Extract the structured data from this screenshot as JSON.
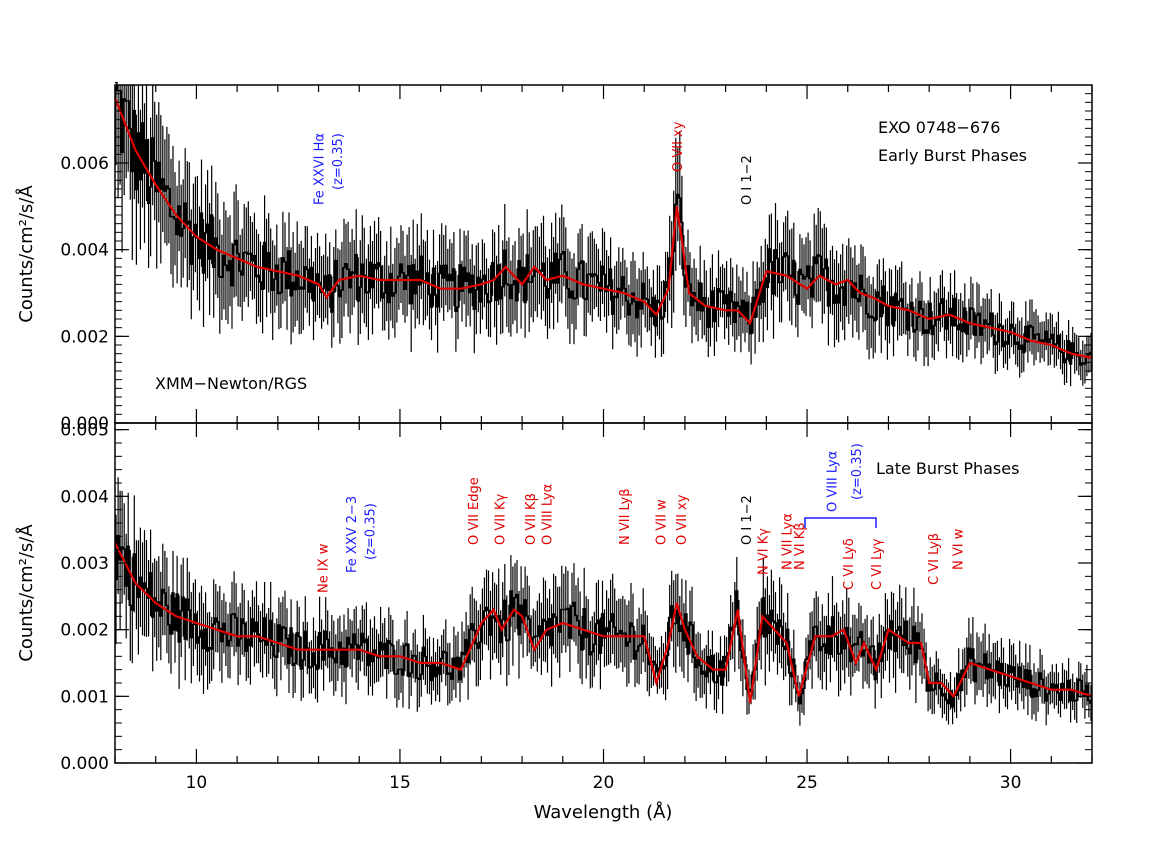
{
  "chart_data": [
    {
      "type": "line",
      "panel": "top",
      "texts": {
        "source": "EXO 0748−676",
        "phase": "Early Burst Phases",
        "instrument": "XMM−Newton/RGS",
        "ylabel": "Counts/cm²/s/Å"
      },
      "xlim": [
        8,
        32
      ],
      "ylim": [
        0,
        0.0078
      ],
      "yticks": [
        {
          "v": 0.0,
          "label": "0.000"
        },
        {
          "v": 0.002,
          "label": "0.002"
        },
        {
          "v": 0.004,
          "label": "0.004"
        },
        {
          "v": 0.006,
          "label": "0.006"
        }
      ],
      "series": [
        {
          "kind": "model",
          "color": "#e00000",
          "x": [
            8.0,
            8.5,
            9.0,
            9.5,
            10.0,
            10.5,
            11.0,
            11.5,
            12.0,
            12.5,
            13.0,
            13.2,
            13.5,
            14.0,
            14.5,
            15.0,
            15.5,
            16.0,
            16.5,
            17.0,
            17.3,
            17.6,
            18.0,
            18.3,
            18.6,
            19.0,
            19.5,
            20.0,
            20.5,
            21.0,
            21.3,
            21.6,
            21.8,
            21.9,
            22.1,
            22.5,
            23.0,
            23.3,
            23.6,
            24.0,
            24.5,
            25.0,
            25.3,
            25.7,
            26.0,
            26.3,
            26.6,
            27.0,
            27.5,
            28.0,
            28.5,
            29.0,
            29.5,
            30.0,
            30.5,
            31.0,
            31.5,
            32.0
          ],
          "y": [
            0.0075,
            0.0063,
            0.0055,
            0.0048,
            0.0043,
            0.004,
            0.0038,
            0.0036,
            0.0035,
            0.0034,
            0.0032,
            0.0029,
            0.0033,
            0.0034,
            0.0033,
            0.0033,
            0.0033,
            0.0031,
            0.0031,
            0.0032,
            0.0033,
            0.0036,
            0.0032,
            0.0036,
            0.0033,
            0.0034,
            0.0032,
            0.0031,
            0.003,
            0.0028,
            0.0025,
            0.0031,
            0.005,
            0.0044,
            0.003,
            0.0027,
            0.0026,
            0.0026,
            0.0023,
            0.0035,
            0.0034,
            0.0031,
            0.0034,
            0.0032,
            0.0033,
            0.003,
            0.0029,
            0.0027,
            0.0026,
            0.0024,
            0.0025,
            0.0023,
            0.0022,
            0.0021,
            0.0019,
            0.0018,
            0.0016,
            0.0015
          ]
        }
      ],
      "annotations": [
        {
          "text": "Fe XXVI Hα",
          "x": 13.0,
          "color": "#1a1aff",
          "rotate": -90
        },
        {
          "text": "(z=0.35)",
          "x": 13.45,
          "color": "#1a1aff",
          "rotate": -90
        },
        {
          "text": "O VII xy",
          "x": 21.8,
          "color": "#e00000",
          "rotate": -90
        },
        {
          "text": "O I 1−2",
          "x": 23.5,
          "color": "#000000",
          "rotate": -90
        }
      ]
    },
    {
      "type": "line",
      "panel": "bottom",
      "texts": {
        "phase": "Late Burst Phases",
        "ylabel": "Counts/cm²/s/Å",
        "xlabel": "Wavelength (Å)"
      },
      "xlim": [
        8,
        32
      ],
      "ylim": [
        0,
        0.0051
      ],
      "xticks": [
        10,
        15,
        20,
        25,
        30
      ],
      "yticks": [
        {
          "v": 0.0,
          "label": "0.000"
        },
        {
          "v": 0.001,
          "label": "0.001"
        },
        {
          "v": 0.002,
          "label": "0.002"
        },
        {
          "v": 0.003,
          "label": "0.003"
        },
        {
          "v": 0.004,
          "label": "0.004"
        },
        {
          "v": 0.005,
          "label": "0.005"
        }
      ],
      "series": [
        {
          "kind": "model",
          "color": "#e00000",
          "x": [
            8.0,
            8.5,
            9.0,
            9.5,
            10.0,
            10.5,
            11.0,
            11.5,
            12.0,
            12.5,
            13.0,
            13.5,
            14.0,
            14.5,
            15.0,
            15.5,
            16.0,
            16.5,
            17.0,
            17.3,
            17.5,
            17.8,
            18.0,
            18.3,
            18.6,
            19.0,
            19.5,
            20.0,
            20.5,
            21.0,
            21.3,
            21.6,
            21.8,
            22.0,
            22.3,
            22.7,
            23.0,
            23.3,
            23.6,
            23.9,
            24.2,
            24.5,
            24.8,
            25.2,
            25.6,
            25.9,
            26.2,
            26.4,
            26.7,
            27.0,
            27.5,
            27.8,
            28.0,
            28.3,
            28.6,
            29.0,
            29.5,
            30.0,
            30.5,
            31.0,
            31.5,
            32.0
          ],
          "y": [
            0.0033,
            0.0027,
            0.0024,
            0.0022,
            0.0021,
            0.002,
            0.0019,
            0.0019,
            0.0018,
            0.0017,
            0.0017,
            0.0017,
            0.0017,
            0.0016,
            0.0016,
            0.0015,
            0.0015,
            0.0014,
            0.0021,
            0.0023,
            0.002,
            0.0023,
            0.0022,
            0.0017,
            0.002,
            0.0021,
            0.002,
            0.0019,
            0.0019,
            0.0019,
            0.0012,
            0.0018,
            0.0024,
            0.002,
            0.0016,
            0.0014,
            0.0014,
            0.0023,
            0.0009,
            0.0022,
            0.002,
            0.0018,
            0.001,
            0.0019,
            0.0019,
            0.002,
            0.0015,
            0.0018,
            0.0014,
            0.002,
            0.0018,
            0.0018,
            0.0012,
            0.0012,
            0.001,
            0.0015,
            0.0014,
            0.0013,
            0.0012,
            0.0011,
            0.0011,
            0.001
          ]
        }
      ],
      "annotations": [
        {
          "text": "Ne IX w",
          "x": 13.1,
          "color": "#e00000",
          "rotate": -90
        },
        {
          "text": "Fe XXV 2−3",
          "x": 13.8,
          "color": "#1a1aff",
          "rotate": -90
        },
        {
          "text": "(z=0.35)",
          "x": 14.25,
          "color": "#1a1aff",
          "rotate": -90
        },
        {
          "text": "O VII Edge",
          "x": 16.8,
          "color": "#e00000",
          "rotate": -90
        },
        {
          "text": "O VII Kγ",
          "x": 17.45,
          "color": "#e00000",
          "rotate": -90
        },
        {
          "text": "O VII Kβ",
          "x": 18.2,
          "color": "#e00000",
          "rotate": -90
        },
        {
          "text": "O VIII Lyα",
          "x": 18.6,
          "color": "#e00000",
          "rotate": -90
        },
        {
          "text": "N VII Lyβ",
          "x": 20.5,
          "color": "#e00000",
          "rotate": -90
        },
        {
          "text": "O VII w",
          "x": 21.4,
          "color": "#e00000",
          "rotate": -90
        },
        {
          "text": "O VII xy",
          "x": 21.9,
          "color": "#e00000",
          "rotate": -90
        },
        {
          "text": "O I 1−2",
          "x": 23.5,
          "color": "#000000",
          "rotate": -90
        },
        {
          "text": "N VI Kγ",
          "x": 23.9,
          "color": "#e00000",
          "rotate": -90
        },
        {
          "text": "N VII Lyα",
          "x": 24.5,
          "color": "#e00000",
          "rotate": -90
        },
        {
          "text": "N VI Kβ",
          "x": 24.8,
          "color": "#e00000",
          "rotate": -90
        },
        {
          "text": "O VIII Lyα",
          "x": 25.6,
          "color": "#1a1aff",
          "rotate": -90
        },
        {
          "text": "(z=0.35)",
          "x": 26.2,
          "color": "#1a1aff",
          "rotate": -90
        },
        {
          "text": "C VI Lyδ",
          "x": 26.0,
          "color": "#e00000",
          "rotate": -90
        },
        {
          "text": "C VI Lyγ",
          "x": 26.7,
          "color": "#e00000",
          "rotate": -90
        },
        {
          "text": "C VI Lyβ",
          "x": 28.1,
          "color": "#e00000",
          "rotate": -90
        },
        {
          "text": "N VI w",
          "x": 28.7,
          "color": "#e00000",
          "rotate": -90
        }
      ]
    }
  ]
}
